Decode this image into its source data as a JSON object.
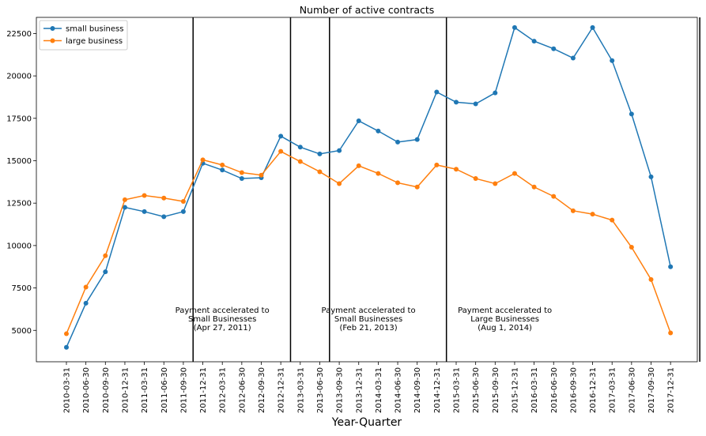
{
  "chart_data": {
    "type": "line",
    "title": "Number of active contracts",
    "xlabel": "Year-Quarter",
    "ylabel": "",
    "categories": [
      "2010-03-31",
      "2010-06-30",
      "2010-09-30",
      "2010-12-31",
      "2011-03-31",
      "2011-06-30",
      "2011-09-30",
      "2011-12-31",
      "2012-03-31",
      "2012-06-30",
      "2012-09-30",
      "2012-12-31",
      "2013-03-31",
      "2013-06-30",
      "2013-09-30",
      "2013-12-31",
      "2014-03-31",
      "2014-06-30",
      "2014-09-30",
      "2014-12-31",
      "2015-03-31",
      "2015-06-30",
      "2015-09-30",
      "2015-12-31",
      "2016-03-31",
      "2016-06-30",
      "2016-09-30",
      "2016-12-31",
      "2017-03-31",
      "2017-06-30",
      "2017-09-30",
      "2017-12-31"
    ],
    "ylim": [
      3150,
      23450
    ],
    "yticks": [
      5000,
      7500,
      10000,
      12500,
      15000,
      17500,
      20000,
      22500
    ],
    "ytick_labels": [
      "5000",
      "7500",
      "10000",
      "12500",
      "15000",
      "17500",
      "20000",
      "22500"
    ],
    "grid": false,
    "legend_position": "upper left",
    "series": [
      {
        "name": "small business",
        "color": "#1f77b4",
        "values": [
          4000,
          6600,
          8450,
          12250,
          12000,
          11700,
          12000,
          14850,
          14450,
          13950,
          14000,
          16450,
          15800,
          15400,
          15600,
          17350,
          16750,
          16100,
          16250,
          19050,
          18450,
          18350,
          19000,
          22850,
          22050,
          21600,
          21050,
          22850,
          20900,
          17750,
          14050,
          8750
        ]
      },
      {
        "name": "large business",
        "color": "#ff7f0e",
        "values": [
          4800,
          7550,
          9400,
          12700,
          12950,
          12800,
          12600,
          15050,
          14750,
          14300,
          14150,
          15550,
          14950,
          14350,
          13650,
          14700,
          14250,
          13700,
          13450,
          14750,
          14500,
          13950,
          13650,
          14250,
          13450,
          12900,
          12050,
          11850,
          11500,
          9900,
          8000,
          4850
        ]
      }
    ],
    "vlines": [
      6.5,
      11.5,
      13.5,
      19.5,
      32.5
    ],
    "annotations": [
      {
        "lines": [
          "Payment accelerated to",
          "Small Businesses",
          "(Apr 27, 2011)"
        ],
        "x": 8.0,
        "y": 6000
      },
      {
        "lines": [
          "Payment accelerated to",
          "Small Businesses",
          "(Feb 21, 2013)"
        ],
        "x": 15.5,
        "y": 6000
      },
      {
        "lines": [
          "Payment accelerated to",
          "Large Businesses",
          "(Aug 1, 2014)"
        ],
        "x": 22.5,
        "y": 6000
      }
    ]
  }
}
